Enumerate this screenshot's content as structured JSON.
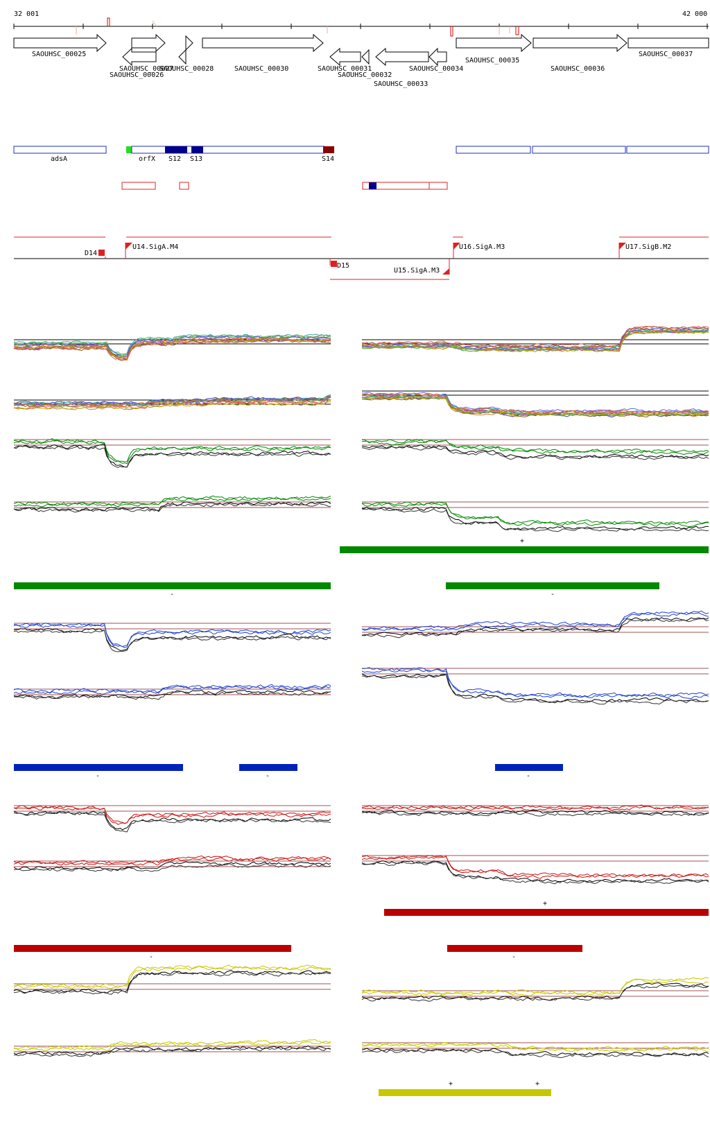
{
  "coords": {
    "start": "32 001",
    "end": "42 000"
  },
  "genes": [
    "SAOUHSC_00025",
    "SAOUHSC_00026",
    "SAOUHSC_00027",
    "SAOUHSC_00028",
    "SAOUHSC_00030",
    "SAOUHSC_00031",
    "SAOUHSC_00032",
    "SAOUHSC_00033",
    "SAOUHSC_00034",
    "SAOUHSC_00035",
    "SAOUHSC_00036",
    "SAOUHSC_00037"
  ],
  "features": [
    "adsA",
    "orfX",
    "S12",
    "S13",
    "S14"
  ],
  "promoters": [
    "D14",
    "U14.SigA.M4",
    "D15",
    "U15.SigA.M3",
    "U16.SigA.M3",
    "U17.SigB.M2"
  ],
  "strand_marks": {
    "plus": "+",
    "minus": "-"
  },
  "colors": {
    "green": "#008800",
    "blue": "#0022bb",
    "red": "#bb0000",
    "yellow": "#c8c800",
    "outline_blue": "#1e2ebe",
    "outline_red": "#e02020"
  }
}
